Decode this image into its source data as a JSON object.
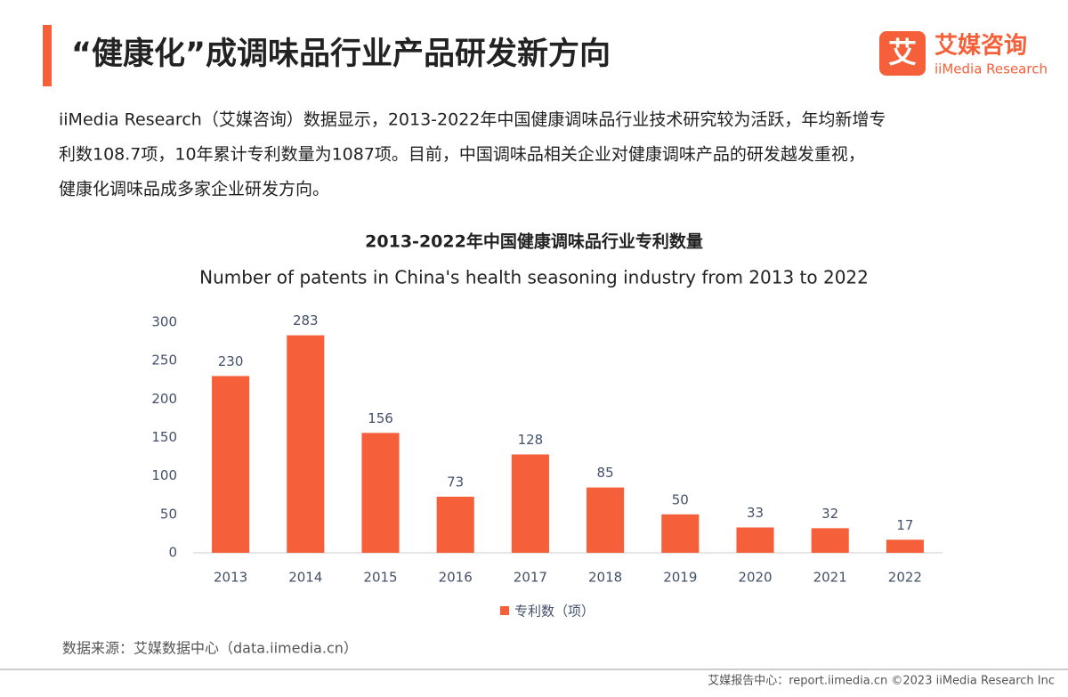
{
  "header": {
    "title": "“健康化”成调味品行业产品研发新方向"
  },
  "logo": {
    "icon": "艾",
    "name": "艾媒咨询",
    "subname": "iiMedia Research"
  },
  "paragraph": [
    "iiMedia Research（艾媒咨询）数据显示，2013-2022年中国健康调味品行业技术研究较为活跃，年均新增专",
    "利数108.7项，10年累计专利数量为1087项。目前，中国调味品相关企业对健康调味产品的研发越发重视，",
    "健康化调味品成多家企业研发方向。"
  ],
  "chart_data": {
    "type": "bar",
    "title": "2013-2022年中国健康调味品行业专利数量",
    "subtitle": "Number of patents in China's health seasoning industry from 2013 to 2022",
    "categories": [
      "2013",
      "2014",
      "2015",
      "2016",
      "2017",
      "2018",
      "2019",
      "2020",
      "2021",
      "2022"
    ],
    "series": [
      {
        "name": "专利数（项）",
        "color": "#f5603a",
        "values": [
          230,
          283,
          156,
          73,
          128,
          85,
          50,
          33,
          32,
          17
        ]
      }
    ],
    "ylim": [
      0,
      300
    ],
    "yticks": [
      0,
      50,
      100,
      150,
      200,
      250,
      300
    ],
    "grid": false,
    "legend": "bottom"
  },
  "source": "数据来源：艾媒数据中心（data.iimedia.cn）",
  "footer": "艾媒报告中心：report.iimedia.cn ©2023 iiMedia Research Inc"
}
